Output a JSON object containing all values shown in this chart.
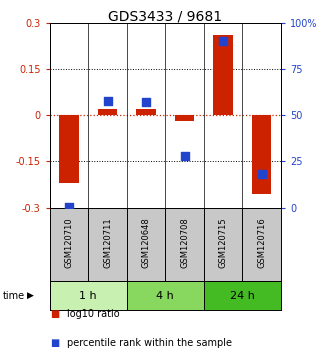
{
  "title": "GDS3433 / 9681",
  "samples": [
    "GSM120710",
    "GSM120711",
    "GSM120648",
    "GSM120708",
    "GSM120715",
    "GSM120716"
  ],
  "time_groups": [
    {
      "label": "1 h",
      "color": "#c8f0b0",
      "start": 0,
      "end": 2
    },
    {
      "label": "4 h",
      "color": "#88d860",
      "start": 2,
      "end": 4
    },
    {
      "label": "24 h",
      "color": "#44bb22",
      "start": 4,
      "end": 6
    }
  ],
  "log10_ratio": [
    -0.22,
    0.02,
    0.02,
    -0.02,
    0.26,
    -0.255
  ],
  "percentile_rank": [
    0.5,
    58,
    57,
    28,
    90,
    18
  ],
  "ylim_left": [
    -0.3,
    0.3
  ],
  "ylim_right": [
    0,
    100
  ],
  "yticks_left": [
    -0.3,
    -0.15,
    0,
    0.15,
    0.3
  ],
  "yticks_right": [
    0,
    25,
    50,
    75,
    100
  ],
  "ytick_labels_left": [
    "-0.3",
    "-0.15",
    "0",
    "0.15",
    "0.3"
  ],
  "ytick_labels_right": [
    "0",
    "25",
    "50",
    "75",
    "100%"
  ],
  "bar_color": "#cc2200",
  "dot_color": "#2244cc",
  "zero_line_color": "#cc2200",
  "hline_positions": [
    -0.15,
    0.15
  ],
  "legend_items": [
    "log10 ratio",
    "percentile rank within the sample"
  ],
  "bg_color_samples": "#c8c8c8",
  "bar_width": 0.5,
  "dot_size": 28,
  "title_fontsize": 10,
  "tick_fontsize": 7,
  "sample_fontsize": 6,
  "time_fontsize": 8,
  "legend_fontsize": 7
}
